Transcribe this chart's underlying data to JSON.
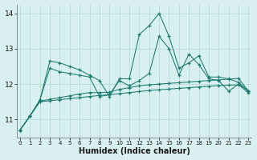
{
  "xlabel": "Humidex (Indice chaleur)",
  "x_values": [
    0,
    1,
    2,
    3,
    4,
    5,
    6,
    7,
    8,
    9,
    10,
    11,
    12,
    13,
    14,
    15,
    16,
    17,
    18,
    19,
    20,
    21,
    22,
    23
  ],
  "line1": [
    10.7,
    11.1,
    11.55,
    12.65,
    12.6,
    12.5,
    12.4,
    12.25,
    12.1,
    11.65,
    12.15,
    12.15,
    13.4,
    13.65,
    14.0,
    13.35,
    12.45,
    12.6,
    12.8,
    12.2,
    12.2,
    12.15,
    12.05,
    11.8
  ],
  "line2": [
    10.7,
    11.1,
    11.55,
    12.45,
    12.35,
    12.3,
    12.25,
    12.2,
    11.65,
    11.7,
    12.1,
    11.95,
    12.1,
    12.3,
    13.35,
    13.0,
    12.25,
    12.85,
    12.55,
    12.15,
    12.1,
    11.8,
    12.0,
    11.8
  ],
  "line3": [
    10.7,
    11.1,
    11.52,
    11.57,
    11.62,
    11.67,
    11.72,
    11.76,
    11.76,
    11.77,
    11.85,
    11.9,
    11.95,
    11.98,
    12.0,
    12.02,
    12.04,
    12.06,
    12.08,
    12.1,
    12.12,
    12.14,
    12.16,
    11.8
  ],
  "line4": [
    10.7,
    11.1,
    11.5,
    11.53,
    11.56,
    11.59,
    11.62,
    11.65,
    11.68,
    11.7,
    11.73,
    11.76,
    11.79,
    11.82,
    11.84,
    11.86,
    11.88,
    11.9,
    11.92,
    11.94,
    11.96,
    11.97,
    11.98,
    11.75
  ],
  "line_color": "#1e7a6e",
  "bg_color": "#d8f0ef",
  "grid_color": "#b0d8d4",
  "ylim": [
    10.5,
    14.25
  ],
  "yticks": [
    11,
    12,
    13,
    14
  ],
  "xlim": [
    -0.3,
    23.3
  ]
}
